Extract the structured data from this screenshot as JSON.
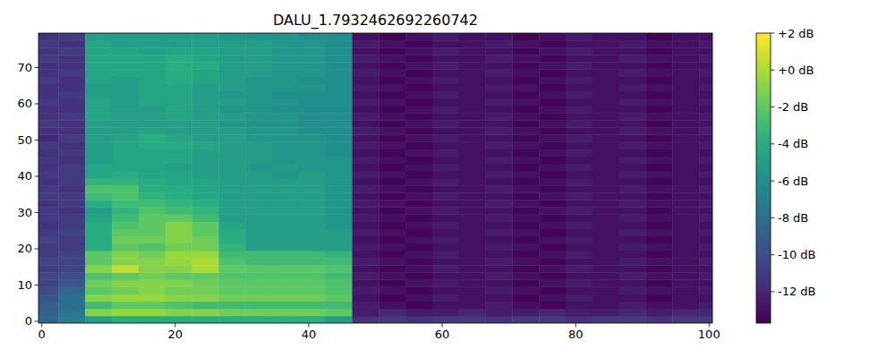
{
  "chart_data": {
    "type": "heatmap",
    "title": "DALU_1.7932462692260742",
    "xlim": [
      -0.5,
      100.5
    ],
    "ylim": [
      -0.5,
      79.5
    ],
    "xticks": [
      0,
      20,
      40,
      60,
      80,
      100
    ],
    "yticks": [
      0,
      10,
      20,
      30,
      40,
      50,
      60,
      70
    ],
    "x_edges": [
      -0.5,
      2.5,
      6.5,
      10.5,
      14.5,
      18.5,
      22.5,
      26.5,
      30.5,
      34.5,
      38.5,
      42.5,
      46.5,
      50.5,
      54.5,
      58.5,
      62.5,
      66.5,
      70.5,
      74.5,
      78.5,
      82.5,
      86.5,
      90.5,
      94.5,
      98.5,
      100.5
    ],
    "y_edges": [
      -0.5,
      1.5,
      3.5,
      5.5,
      7.5,
      9.5,
      11.5,
      13.5,
      15.5,
      17.5,
      19.5,
      21.5,
      23.5,
      25.5,
      27.5,
      29.5,
      31.5,
      33.5,
      35.5,
      37.5,
      39.5,
      41.5,
      43.5,
      45.5,
      47.5,
      49.5,
      51.5,
      53.5,
      55.5,
      57.5,
      59.5,
      61.5,
      63.5,
      65.5,
      67.5,
      69.5,
      71.5,
      73.5,
      75.5,
      77.5,
      79.5
    ],
    "cells": [
      [
        -8.5,
        -7,
        -5,
        -4,
        -4,
        -4,
        -4,
        -4,
        -4,
        -4,
        -4,
        -5,
        -11.5,
        -11,
        -11.5,
        -11,
        -11,
        -11.5,
        -11,
        -11,
        -11.5,
        -11,
        -11,
        -11.5,
        -11,
        -11
      ],
      [
        -9,
        -7.5,
        -1,
        -0.5,
        -0.5,
        -1,
        -1,
        -1.5,
        -1.5,
        -1.5,
        -1.5,
        -2,
        -12.5,
        -12,
        -12.5,
        -12.5,
        -12,
        -12.5,
        -12.5,
        -12,
        -12.5,
        -12.5,
        -12,
        -12.5,
        -12,
        -12
      ],
      [
        -9,
        -8,
        -3,
        -2,
        -2,
        -2.5,
        -3,
        -3,
        -3,
        -3,
        -3,
        -3,
        -12.5,
        -13,
        -13.5,
        -13,
        -13,
        -12.5,
        -13,
        -13.5,
        -13,
        -13,
        -12.5,
        -13,
        -13,
        -12.5
      ],
      [
        -9.5,
        -8,
        -1,
        -0.5,
        -0.5,
        -1,
        -1,
        -1.5,
        -1.5,
        -1.5,
        -1.5,
        -2,
        -13,
        -13.5,
        -13,
        -12.5,
        -13,
        -13,
        -13.5,
        -13,
        -12.5,
        -13,
        -13,
        -13.5,
        -13,
        -13
      ],
      [
        -10,
        -8.5,
        -2,
        -1.5,
        -1,
        -1.5,
        -1.5,
        -2,
        -2,
        -2,
        -2,
        -2.5,
        -12.5,
        -13,
        -13.5,
        -13,
        -13,
        -12.5,
        -13,
        -13.5,
        -13,
        -13,
        -12.5,
        -13,
        -13,
        -12.5
      ],
      [
        -10.5,
        -9.5,
        -1.5,
        -1,
        -1,
        -1,
        -1.5,
        -2,
        -2,
        -2,
        -2,
        -2.5,
        -13,
        -13.5,
        -13,
        -12.5,
        -13,
        -13,
        -13.5,
        -13,
        -12.5,
        -13,
        -13,
        -13.5,
        -13,
        -13
      ],
      [
        -10.5,
        -10,
        -2.5,
        -2,
        -1.5,
        -2,
        -2,
        -2.5,
        -2.5,
        -2.5,
        -2.5,
        -3,
        -12.5,
        -13,
        -13.5,
        -13,
        -13,
        -12.5,
        -13,
        -13.5,
        -13,
        -13,
        -12.5,
        -13,
        -13,
        -12.5
      ],
      [
        -11,
        -10.5,
        -1,
        0.5,
        -1,
        -1,
        0,
        -2,
        -2,
        -2,
        -2,
        -2.5,
        -13,
        -13.5,
        -13,
        -12.5,
        -13,
        -13,
        -13.5,
        -13,
        -12.5,
        -13,
        -13,
        -13.5,
        -13,
        -13
      ],
      [
        -10.5,
        -10.5,
        -2,
        -1,
        -1,
        -0.5,
        0,
        -2.5,
        -3,
        -3,
        -3,
        -3,
        -12.5,
        -13,
        -13.5,
        -13,
        -13,
        -12.5,
        -13,
        -13.5,
        -13,
        -13,
        -12.5,
        -13,
        -13,
        -12.5
      ],
      [
        -11,
        -10.5,
        -2,
        -1,
        -1.5,
        -0.5,
        -0.5,
        -3,
        -3,
        -3,
        -3,
        -3.5,
        -13,
        -13.5,
        -13,
        -12.5,
        -13,
        -13,
        -13.5,
        -13,
        -12.5,
        -13,
        -13,
        -13.5,
        -13,
        -13
      ],
      [
        -11,
        -11,
        -4,
        -2,
        -2.5,
        -1.5,
        -1.5,
        -3.5,
        -5,
        -5,
        -5,
        -5,
        -12.5,
        -13,
        -13.5,
        -13,
        -13,
        -12.5,
        -13,
        -13.5,
        -13,
        -13,
        -12.5,
        -13,
        -13,
        -12.5
      ],
      [
        -10.5,
        -11,
        -4,
        -1.5,
        -1.5,
        -1,
        -1.5,
        -4,
        -5,
        -5,
        -5,
        -5,
        -13,
        -13.5,
        -13,
        -12.5,
        -13,
        -13,
        -13.5,
        -13,
        -12.5,
        -13,
        -13,
        -13.5,
        -13,
        -13
      ],
      [
        -11,
        -10.5,
        -4,
        -2,
        -2,
        -1,
        -2,
        -4,
        -5,
        -5,
        -5,
        -5,
        -12.5,
        -13,
        -13.5,
        -13,
        -13,
        -12.5,
        -13,
        -13.5,
        -13,
        -13,
        -12.5,
        -13,
        -13,
        -12.5
      ],
      [
        -11.5,
        -11,
        -4,
        -2.5,
        -2,
        -1,
        -2,
        -4.5,
        -5,
        -5,
        -5,
        -5.5,
        -13,
        -13.5,
        -13,
        -12.5,
        -13,
        -13,
        -13.5,
        -13,
        -12.5,
        -13,
        -13,
        -13.5,
        -13,
        -13
      ],
      [
        -11,
        -11,
        -4.5,
        -3,
        -2,
        -2,
        -3,
        -5,
        -5,
        -5,
        -5,
        -5.5,
        -12.5,
        -13,
        -13.5,
        -13,
        -13,
        -12.5,
        -13,
        -13.5,
        -13,
        -13,
        -12.5,
        -13,
        -13,
        -12.5
      ],
      [
        -11,
        -11.5,
        -5,
        -3.5,
        -2.5,
        -3,
        -3.5,
        -5,
        -5,
        -5,
        -5,
        -5.5,
        -13,
        -13.5,
        -13,
        -12.5,
        -13,
        -13,
        -13.5,
        -13,
        -12.5,
        -13,
        -13,
        -13.5,
        -13,
        -13
      ],
      [
        -11.5,
        -11,
        -4,
        -3,
        -3,
        -3.5,
        -4,
        -5,
        -5,
        -5,
        -5,
        -5.5,
        -12.5,
        -13,
        -13.5,
        -13,
        -13,
        -12.5,
        -13,
        -13.5,
        -13,
        -13,
        -12.5,
        -13,
        -13,
        -12.5
      ],
      [
        -11,
        -11,
        -3,
        -2.5,
        -3.5,
        -4,
        -4.5,
        -5,
        -5,
        -5,
        -5,
        -5.5,
        -13,
        -13.5,
        -13,
        -12.5,
        -13,
        -13,
        -13.5,
        -13,
        -12.5,
        -13,
        -13,
        -13.5,
        -13,
        -13
      ],
      [
        -11,
        -11.5,
        -2.5,
        -2.5,
        -4,
        -4,
        -4.5,
        -5,
        -5,
        -5,
        -5,
        -5.5,
        -12.5,
        -13,
        -13.5,
        -13,
        -13,
        -12.5,
        -13,
        -13.5,
        -13,
        -13,
        -12.5,
        -13,
        -13,
        -12.5
      ],
      [
        -11.5,
        -11,
        -3.5,
        -3.5,
        -4,
        -4.5,
        -4.5,
        -5,
        -5,
        -5,
        -5,
        -5.5,
        -13,
        -13.5,
        -13,
        -12.5,
        -13,
        -13,
        -13.5,
        -13,
        -12.5,
        -13,
        -13,
        -13.5,
        -13,
        -13
      ],
      [
        -11,
        -11,
        -4.5,
        -4,
        -4.5,
        -4.5,
        -5,
        -5,
        -5,
        -5.5,
        -5,
        -5.5,
        -12.5,
        -13,
        -13.5,
        -13,
        -13,
        -12.5,
        -13,
        -13.5,
        -13,
        -13,
        -12.5,
        -13,
        -13,
        -12.5
      ],
      [
        -11.5,
        -11,
        -4.5,
        -4.5,
        -4.5,
        -5,
        -5,
        -5,
        -5.5,
        -5,
        -5.5,
        -5.5,
        -13,
        -13.5,
        -13,
        -12.5,
        -13,
        -13,
        -13.5,
        -13,
        -12.5,
        -13,
        -13,
        -13.5,
        -13,
        -13
      ],
      [
        -11,
        -11.5,
        -5,
        -4.5,
        -4.5,
        -4.5,
        -5,
        -5,
        -5,
        -5.5,
        -5.5,
        -5.5,
        -12.5,
        -13,
        -13.5,
        -13,
        -13,
        -12.5,
        -13,
        -13.5,
        -13,
        -13,
        -12.5,
        -13,
        -13,
        -12.5
      ],
      [
        -11.5,
        -11,
        -5,
        -4.5,
        -4.5,
        -4.5,
        -5,
        -5,
        -5,
        -5.5,
        -5.5,
        -6,
        -13,
        -13.5,
        -13,
        -12.5,
        -13,
        -13,
        -13.5,
        -13,
        -12.5,
        -13,
        -13,
        -13.5,
        -13,
        -13
      ],
      [
        -11,
        -11.5,
        -5,
        -4.5,
        -4,
        -4,
        -4.5,
        -5,
        -5,
        -5.5,
        -5.5,
        -6,
        -12.5,
        -13,
        -13.5,
        -13,
        -13,
        -12.5,
        -13,
        -13.5,
        -13,
        -13,
        -12.5,
        -13,
        -13,
        -12.5
      ],
      [
        -12,
        -11,
        -5,
        -4.5,
        -4,
        -4.5,
        -5,
        -5,
        -5.5,
        -5.5,
        -5.5,
        -6,
        -13,
        -13.5,
        -13,
        -12.5,
        -13,
        -13,
        -13.5,
        -13,
        -12.5,
        -13,
        -13,
        -13.5,
        -13,
        -13
      ],
      [
        -11.5,
        -11.5,
        -5,
        -5,
        -4.5,
        -5,
        -5,
        -5,
        -5.5,
        -5.5,
        -6,
        -6,
        -12.5,
        -13,
        -13.5,
        -13,
        -13,
        -12.5,
        -13,
        -13.5,
        -13,
        -13,
        -12.5,
        -13,
        -13,
        -12.5
      ],
      [
        -11,
        -11.5,
        -5,
        -5,
        -5,
        -5,
        -5,
        -5.5,
        -5.5,
        -5.5,
        -6,
        -6,
        -13,
        -13.5,
        -13,
        -12.5,
        -13,
        -13,
        -13.5,
        -13,
        -12.5,
        -13,
        -13,
        -13.5,
        -13,
        -13
      ],
      [
        -11.5,
        -11,
        -4.5,
        -5,
        -5,
        -4.5,
        -5,
        -5,
        -5.5,
        -5.5,
        -6,
        -6,
        -12.5,
        -13,
        -13.5,
        -13,
        -13,
        -12.5,
        -13,
        -13.5,
        -13,
        -13,
        -12.5,
        -13,
        -13,
        -12.5
      ],
      [
        -11.5,
        -11.5,
        -4.5,
        -5,
        -5,
        -4.5,
        -5,
        -5.5,
        -5.5,
        -6,
        -6,
        -6,
        -13,
        -13.5,
        -13,
        -12.5,
        -13,
        -13,
        -13.5,
        -13,
        -12.5,
        -13,
        -13,
        -13.5,
        -13,
        -13
      ],
      [
        -11,
        -11.5,
        -4.5,
        -5,
        -4.5,
        -4.5,
        -5,
        -5,
        -5.5,
        -5.5,
        -6,
        -6,
        -12.5,
        -13,
        -13.5,
        -13,
        -13,
        -12.5,
        -13,
        -13.5,
        -13,
        -13,
        -12.5,
        -13,
        -13,
        -12.5
      ],
      [
        -11.5,
        -11,
        -5,
        -5,
        -4.5,
        -4.5,
        -5,
        -5.5,
        -5.5,
        -6,
        -6,
        -6,
        -13,
        -13.5,
        -13,
        -12.5,
        -13,
        -13,
        -13.5,
        -13,
        -12.5,
        -13,
        -13,
        -13.5,
        -13,
        -13
      ],
      [
        -11.5,
        -11.5,
        -5,
        -5,
        -4.5,
        -4.5,
        -5,
        -5,
        -5.5,
        -5.5,
        -5.5,
        -6,
        -12.5,
        -13,
        -13.5,
        -13,
        -13,
        -12.5,
        -13,
        -13.5,
        -13,
        -13,
        -12.5,
        -13,
        -13,
        -12.5
      ],
      [
        -11,
        -11.5,
        -4.5,
        -5,
        -4.5,
        -4,
        -4.5,
        -5,
        -5.5,
        -5.5,
        -6,
        -6,
        -13,
        -13.5,
        -13,
        -12.5,
        -13,
        -13,
        -13.5,
        -13,
        -12.5,
        -13,
        -13,
        -13.5,
        -13,
        -13
      ],
      [
        -11.5,
        -11,
        -4.5,
        -4.5,
        -4.5,
        -4,
        -4.5,
        -5,
        -5,
        -5.5,
        -5.5,
        -6,
        -12.5,
        -13,
        -13.5,
        -13,
        -13,
        -12.5,
        -13,
        -13.5,
        -13,
        -13,
        -12.5,
        -13,
        -13,
        -12.5
      ],
      [
        -11.5,
        -11.5,
        -4.5,
        -4.5,
        -4.5,
        -4,
        -4,
        -5,
        -5,
        -5.5,
        -5.5,
        -6,
        -13,
        -13.5,
        -13,
        -12.5,
        -13,
        -13,
        -13.5,
        -13,
        -12.5,
        -13,
        -13,
        -13.5,
        -13,
        -13
      ],
      [
        -11,
        -11.5,
        -4.5,
        -4.5,
        -4.5,
        -4,
        -4.5,
        -5,
        -5,
        -5.5,
        -5.5,
        -6,
        -12.5,
        -13,
        -13.5,
        -13,
        -13,
        -12.5,
        -13,
        -13.5,
        -13,
        -13,
        -12.5,
        -13,
        -13,
        -12.5
      ],
      [
        -11.5,
        -11,
        -4.5,
        -4.5,
        -5,
        -4.5,
        -4.5,
        -5,
        -5,
        -5.5,
        -5.5,
        -6,
        -13,
        -13.5,
        -13,
        -12.5,
        -13,
        -13,
        -13.5,
        -13,
        -12.5,
        -13,
        -13,
        -13.5,
        -13,
        -13
      ],
      [
        -11,
        -11.5,
        -4.5,
        -5,
        -5,
        -5,
        -5,
        -5,
        -5,
        -5.5,
        -5.5,
        -6,
        -12.5,
        -13,
        -13.5,
        -13,
        -13,
        -12.5,
        -13,
        -13.5,
        -13,
        -13,
        -12.5,
        -13,
        -13,
        -12.5
      ],
      [
        -11.5,
        -11,
        -5,
        -5,
        -5,
        -5,
        -5,
        -5.5,
        -5.5,
        -5.5,
        -6,
        -6,
        -13,
        -13.5,
        -13,
        -12.5,
        -13,
        -13,
        -13.5,
        -13,
        -12.5,
        -13,
        -13,
        -13.5,
        -13,
        -13
      ]
    ],
    "colorbar": {
      "range": [
        -13.7,
        2
      ],
      "ticks": [
        {
          "value": 2,
          "label": "+2 dB"
        },
        {
          "value": 0,
          "label": "+0 dB"
        },
        {
          "value": -2,
          "label": "-2 dB"
        },
        {
          "value": -4,
          "label": "-4 dB"
        },
        {
          "value": -6,
          "label": "-6 dB"
        },
        {
          "value": -8,
          "label": "-8 dB"
        },
        {
          "value": -10,
          "label": "-10 dB"
        },
        {
          "value": -12,
          "label": "-12 dB"
        }
      ]
    }
  }
}
